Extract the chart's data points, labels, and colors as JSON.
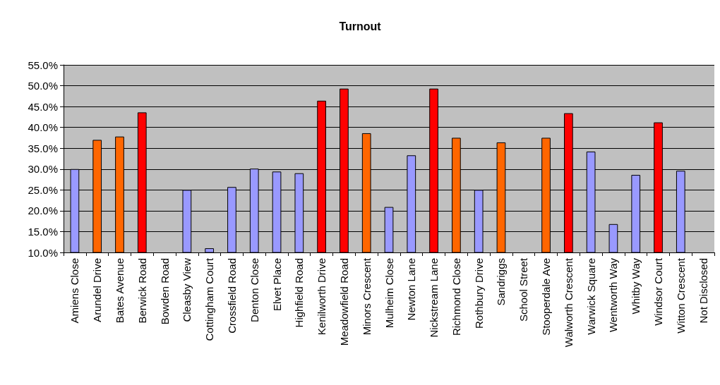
{
  "chart_data": {
    "type": "bar",
    "title": "Turnout",
    "categories": [
      "Amiens Close",
      "Arundel Drive",
      "Bates Avenue",
      "Berwick Road",
      "Bowden Road",
      "Cleasby View",
      "Cottingham Court",
      "Crossfield Road",
      "Denton Close",
      "Elvet Place",
      "Highfield Road",
      "Kenilworth Drive",
      "Meadowfield Road",
      "Minors Crescent",
      "Mulheim Close",
      "Newton Lane",
      "Nickstream Lane",
      "Richmond Close",
      "Rothbury Drive",
      "Sandriggs",
      "School Street",
      "Stooperdale Ave",
      "Walworth Crescent",
      "Warwick Square",
      "Wentworth Way",
      "Whitby Way",
      "Windsor Court",
      "Witton Crescent",
      "Not Disclosed"
    ],
    "values": [
      30.0,
      37.0,
      37.8,
      43.6,
      null,
      25.0,
      11.0,
      25.7,
      30.1,
      29.4,
      29.0,
      46.4,
      49.3,
      38.6,
      20.9,
      33.3,
      49.3,
      37.5,
      25.0,
      36.4,
      null,
      37.5,
      43.4,
      34.2,
      16.8,
      28.6,
      41.2,
      29.6,
      null
    ],
    "colors": [
      "#9999ff",
      "#ff6600",
      "#ff6600",
      "#ff0000",
      "#9999ff",
      "#9999ff",
      "#9999ff",
      "#9999ff",
      "#9999ff",
      "#9999ff",
      "#9999ff",
      "#ff0000",
      "#ff0000",
      "#ff6600",
      "#9999ff",
      "#9999ff",
      "#ff0000",
      "#ff6600",
      "#9999ff",
      "#ff6600",
      "#9999ff",
      "#ff6600",
      "#ff0000",
      "#9999ff",
      "#9999ff",
      "#9999ff",
      "#ff0000",
      "#9999ff",
      "#9999ff"
    ],
    "ylim": [
      10,
      55
    ],
    "yticks": [
      {
        "value": 10,
        "label": "10.0%"
      },
      {
        "value": 15,
        "label": "15.0%"
      },
      {
        "value": 20,
        "label": "20.0%"
      },
      {
        "value": 25,
        "label": "25.0%"
      },
      {
        "value": 30,
        "label": "30.0%"
      },
      {
        "value": 35,
        "label": "35.0%"
      },
      {
        "value": 40,
        "label": "40.0%"
      },
      {
        "value": 45,
        "label": "45.0%"
      },
      {
        "value": 50,
        "label": "50.0%"
      },
      {
        "value": 55,
        "label": "55.0%"
      }
    ],
    "grid": "y"
  }
}
